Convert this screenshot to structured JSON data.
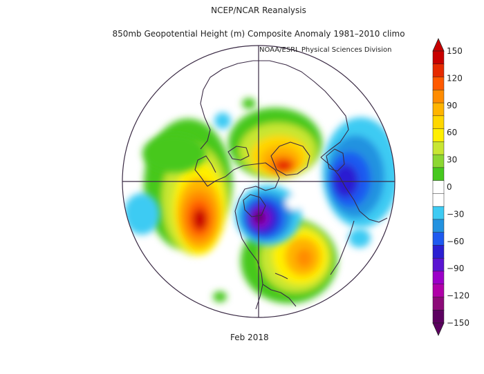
{
  "header": {
    "title": "NCEP/NCAR Reanalysis",
    "subtitle": "850mb Geopotential Height (m) Composite Anomaly 1981–2010 climo",
    "source": "NOAA/ESRL Physical Sciences Division"
  },
  "footer": {
    "period": "Feb 2018"
  },
  "map": {
    "projection": "north-polar-stereographic",
    "variable": "850mb geopotential height anomaly",
    "units": "m",
    "anomaly_centers": [
      {
        "region": "north-pacific-alaska-west",
        "sign": "positive",
        "peak_m": 150
      },
      {
        "region": "greenland-arctic",
        "sign": "positive",
        "peak_m": 120
      },
      {
        "region": "north-atlantic-southeast-us",
        "sign": "positive",
        "peak_m": 90
      },
      {
        "region": "hudson-bay-canada",
        "sign": "negative",
        "peak_m": -150
      },
      {
        "region": "northern-europe-siberia",
        "sign": "negative",
        "peak_m": -60
      }
    ]
  },
  "colorbar": {
    "labels": [
      "150",
      "120",
      "90",
      "60",
      "30",
      "0",
      "−30",
      "−60",
      "−90",
      "−120",
      "−150"
    ],
    "levels": [
      150,
      135,
      120,
      105,
      90,
      75,
      60,
      45,
      30,
      15,
      0,
      -15,
      -30,
      -45,
      -60,
      -75,
      -90,
      -105,
      -120,
      -135,
      -150
    ],
    "colors": [
      "#c80000",
      "#e62a00",
      "#ff5a00",
      "#ff8c00",
      "#ffb400",
      "#ffd700",
      "#ffef00",
      "#c8e632",
      "#8cd732",
      "#46c81e",
      "#ffffff",
      "#ffffff",
      "#3ecbf3",
      "#2392e0",
      "#1e5af0",
      "#2b1fd2",
      "#5a14d2",
      "#9b00c8",
      "#b000a8",
      "#8c0a78",
      "#5c0060"
    ]
  }
}
